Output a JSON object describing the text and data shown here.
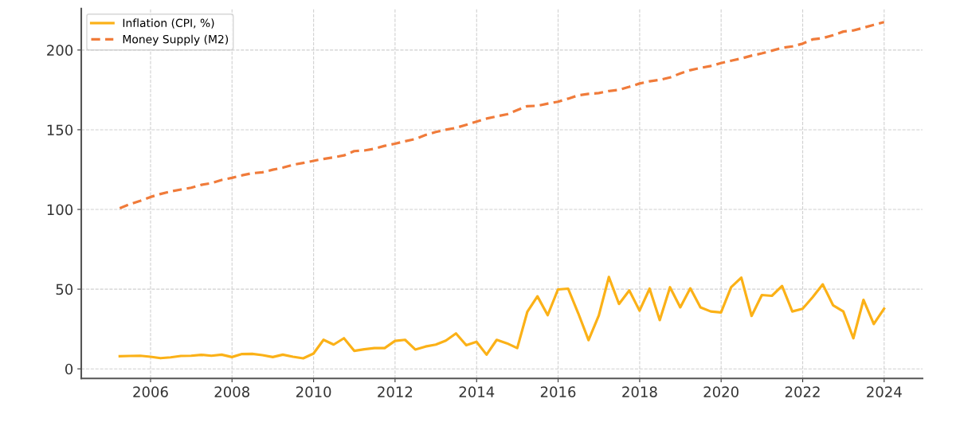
{
  "chart_data": {
    "type": "line",
    "x": [
      "2005-03-31",
      "2005-06-30",
      "2005-09-30",
      "2005-12-31",
      "2006-03-31",
      "2006-06-30",
      "2006-09-30",
      "2006-12-31",
      "2007-03-31",
      "2007-06-30",
      "2007-09-30",
      "2007-12-31",
      "2008-03-31",
      "2008-06-30",
      "2008-09-30",
      "2008-12-31",
      "2009-03-31",
      "2009-06-30",
      "2009-09-30",
      "2009-12-31",
      "2010-03-31",
      "2010-06-30",
      "2010-09-30",
      "2010-12-31",
      "2011-03-31",
      "2011-06-30",
      "2011-09-30",
      "2011-12-31",
      "2012-03-31",
      "2012-06-30",
      "2012-09-30",
      "2012-12-31",
      "2013-03-31",
      "2013-06-30",
      "2013-09-30",
      "2013-12-31",
      "2014-03-31",
      "2014-06-30",
      "2014-09-30",
      "2014-12-31",
      "2015-03-31",
      "2015-06-30",
      "2015-09-30",
      "2015-12-31",
      "2016-03-31",
      "2016-06-30",
      "2016-09-30",
      "2016-12-31",
      "2017-03-31",
      "2017-06-30",
      "2017-09-30",
      "2017-12-31",
      "2018-03-31",
      "2018-06-30",
      "2018-09-30",
      "2018-12-31",
      "2019-03-31",
      "2019-06-30",
      "2019-09-30",
      "2019-12-31",
      "2020-03-31",
      "2020-06-30",
      "2020-09-30",
      "2020-12-31",
      "2021-03-31",
      "2021-06-30",
      "2021-09-30",
      "2021-12-31",
      "2022-03-31",
      "2022-06-30",
      "2022-09-30",
      "2022-12-31",
      "2023-03-31",
      "2023-06-30",
      "2023-09-30",
      "2023-12-31"
    ],
    "series": [
      {
        "name": "Inflation (CPI, %)",
        "color": "#fbb117",
        "line_style": "solid",
        "values": [
          7.9,
          8.1,
          8.2,
          7.6,
          6.7,
          7.2,
          8.1,
          8.2,
          8.8,
          8.2,
          8.9,
          7.4,
          9.3,
          9.4,
          8.6,
          7.4,
          8.9,
          7.6,
          6.6,
          9.6,
          18.2,
          15.2,
          19.2,
          11.3,
          12.3,
          13.0,
          13.0,
          17.5,
          18.2,
          12.1,
          14.0,
          15.2,
          17.7,
          22.2,
          14.8,
          17.0,
          8.9,
          18.2,
          16.0,
          13.0,
          35.7,
          45.5,
          33.7,
          49.8,
          50.3,
          34.8,
          18.0,
          33.5,
          57.6,
          40.7,
          49.2,
          36.5,
          50.3,
          30.6,
          51.2,
          38.6,
          50.5,
          38.6,
          36.0,
          35.4,
          51.2,
          57.2,
          33.2,
          46.3,
          45.8,
          52.0,
          36.0,
          37.7,
          44.9,
          53.0,
          39.9,
          36.0,
          19.2,
          43.3,
          28.1,
          37.7
        ]
      },
      {
        "name": "Money Supply (M2)",
        "color": "#f07b3a",
        "line_style": "dashed",
        "values": [
          100.8,
          103.3,
          105.4,
          107.8,
          109.7,
          111.3,
          112.5,
          113.6,
          115.4,
          116.5,
          118.5,
          119.8,
          121.4,
          122.7,
          123.3,
          124.9,
          126.2,
          128.0,
          129.2,
          130.5,
          131.7,
          132.7,
          133.9,
          136.6,
          137.0,
          138.1,
          139.9,
          141.2,
          142.8,
          144.2,
          146.7,
          148.6,
          150.0,
          151.2,
          153.1,
          155.1,
          157.0,
          158.4,
          159.7,
          162.3,
          164.8,
          165.0,
          166.4,
          167.6,
          169.5,
          171.6,
          172.5,
          173.0,
          174.3,
          175.0,
          176.9,
          179.0,
          180.4,
          181.3,
          182.8,
          185.3,
          187.4,
          188.8,
          190.0,
          191.8,
          193.3,
          194.7,
          196.5,
          197.9,
          199.6,
          201.4,
          202.3,
          204.0,
          206.7,
          207.5,
          209.3,
          211.6,
          212.3,
          214.0,
          215.8,
          217.5
        ]
      }
    ],
    "xlim": [
      "2004-04-20",
      "2024-12-10"
    ],
    "xticks": [
      {
        "value": "2006-01-01",
        "label": "2006"
      },
      {
        "value": "2008-01-01",
        "label": "2008"
      },
      {
        "value": "2010-01-01",
        "label": "2010"
      },
      {
        "value": "2012-01-01",
        "label": "2012"
      },
      {
        "value": "2014-01-01",
        "label": "2014"
      },
      {
        "value": "2016-01-01",
        "label": "2016"
      },
      {
        "value": "2018-01-01",
        "label": "2018"
      },
      {
        "value": "2020-01-01",
        "label": "2020"
      },
      {
        "value": "2022-01-01",
        "label": "2022"
      },
      {
        "value": "2024-01-01",
        "label": "2024"
      }
    ],
    "ylim": [
      -6,
      226
    ],
    "yticks": [
      0,
      50,
      100,
      150,
      200
    ],
    "grid": true,
    "legend": "top left"
  }
}
